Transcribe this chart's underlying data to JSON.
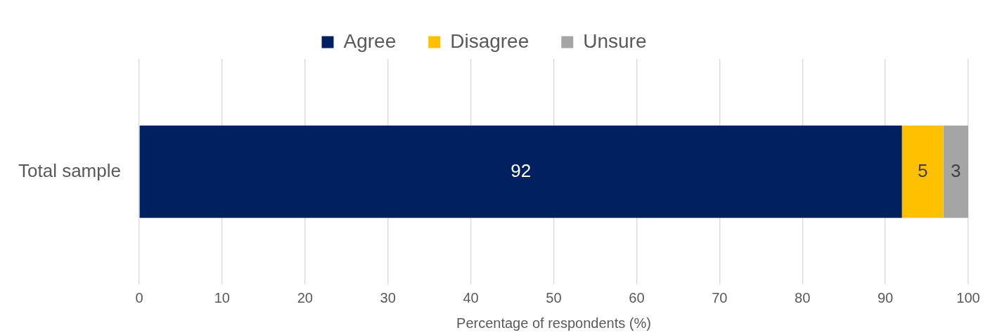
{
  "chart_data": {
    "type": "bar",
    "orientation": "horizontal",
    "stacked": true,
    "categories": [
      "Total sample"
    ],
    "series": [
      {
        "name": "Agree",
        "color": "#002060",
        "values": [
          92
        ]
      },
      {
        "name": "Disagree",
        "color": "#ffc000",
        "values": [
          5
        ]
      },
      {
        "name": "Unsure",
        "color": "#a5a5a5",
        "values": [
          3
        ]
      }
    ],
    "xlabel": "Percentage of respondents (%)",
    "xlim": [
      0,
      100
    ],
    "xticks": [
      0,
      10,
      20,
      30,
      40,
      50,
      60,
      70,
      80,
      90,
      100
    ],
    "grid": "x",
    "legend": "top",
    "data_labels": true
  }
}
